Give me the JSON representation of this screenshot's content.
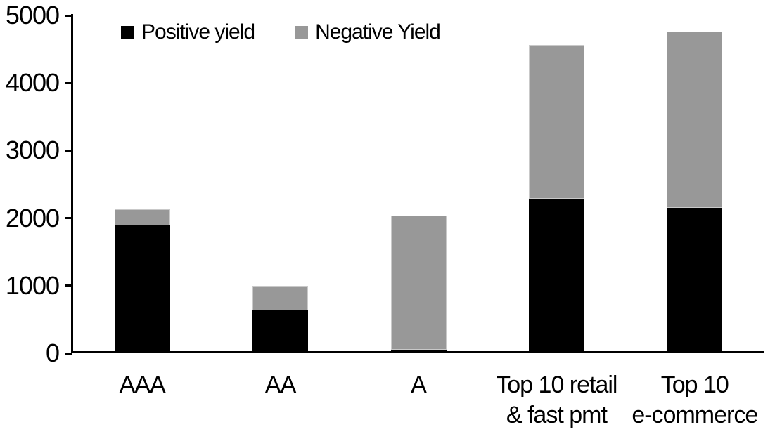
{
  "chart_data": {
    "type": "bar",
    "stacked": true,
    "title": "",
    "xlabel": "",
    "ylabel": "",
    "categories": [
      "AAA",
      "AA",
      "A",
      "Top 10 retail & fast pmt",
      "Top 10 e-commerce"
    ],
    "category_label_lines": [
      [
        "AAA"
      ],
      [
        "AA"
      ],
      [
        "A"
      ],
      [
        "Top 10 retail",
        "& fast pmt"
      ],
      [
        "Top 10",
        "e-commerce"
      ]
    ],
    "series": [
      {
        "name": "Positive yield",
        "color": "#000000",
        "values": [
          1890,
          630,
          50,
          2290,
          2150
        ]
      },
      {
        "name": "Negative Yield",
        "color": "#989898",
        "values": [
          240,
          370,
          1990,
          2270,
          2610
        ]
      }
    ],
    "stack_totals": [
      2130,
      1000,
      2040,
      4560,
      4760
    ],
    "ylim": [
      0,
      5000
    ],
    "yticks": [
      0,
      1000,
      2000,
      3000,
      4000,
      5000
    ],
    "grid": false,
    "legend_position": "top"
  },
  "colors": {
    "axis": "#000000",
    "background": "#ffffff",
    "positive_yield": "#000000",
    "negative_yield": "#989898"
  }
}
